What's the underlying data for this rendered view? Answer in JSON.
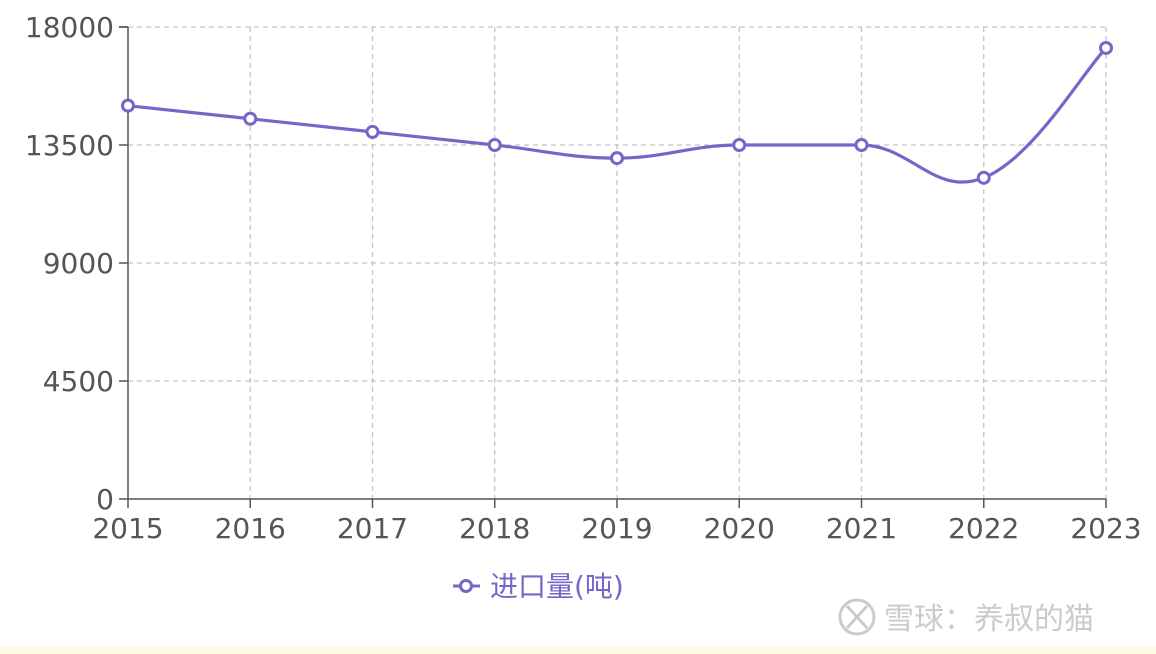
{
  "chart_data": {
    "type": "line",
    "x": [
      "2015",
      "2016",
      "2017",
      "2018",
      "2019",
      "2020",
      "2021",
      "2022",
      "2023"
    ],
    "series": [
      {
        "name": "进口量(吨)",
        "values": [
          15000,
          14500,
          14000,
          13500,
          13000,
          13500,
          13500,
          12250,
          17200
        ],
        "color": "#7467c8"
      }
    ],
    "ylim": [
      0,
      18000
    ],
    "yticks": [
      "0",
      "4500",
      "9000",
      "13500",
      "18000"
    ],
    "grid": true,
    "smooth": true,
    "marker": "hollow-circle",
    "legend_position": "bottom-center"
  },
  "watermark": {
    "text": "雪球：养叔的猫",
    "icon": "snowball-logo-icon"
  }
}
